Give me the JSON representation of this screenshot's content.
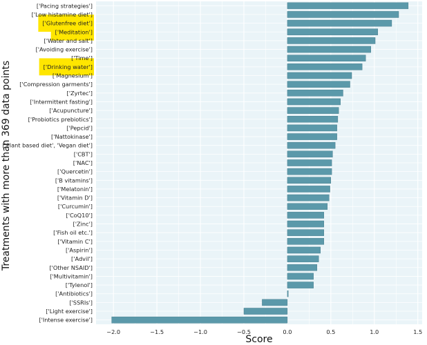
{
  "chart_data": {
    "type": "bar",
    "orientation": "horizontal",
    "title": "",
    "xlabel": "Score",
    "ylabel": "Treatments with more than 369 data points",
    "xlim": [
      -2.2,
      1.55
    ],
    "xticks": [
      "−2.0",
      "−1.5",
      "−1.0",
      "−0.5",
      "0.0",
      "0.5",
      "1.0",
      "1.5"
    ],
    "xtick_values": [
      -2.0,
      -1.5,
      -1.0,
      -0.5,
      0.0,
      0.5,
      1.0,
      1.5
    ],
    "grid": true,
    "colors": {
      "bar": "#5b99aa",
      "bar_edge": "#3f7686",
      "plot_background": "#eaf4f8",
      "grid": "#ffffff",
      "highlight": "#ffe600"
    },
    "categories": [
      "['Pacing strategies']",
      "['Low histamine diet']",
      "['Glutenfree diet']",
      "['Meditation']",
      "['Water and salt']",
      "['Avoiding exercise']",
      "['Time']",
      "['Drinking water']",
      "['Magnesium']",
      "['Compression garments']",
      "['Zyrtec']",
      "['Intermittent fasting']",
      "['Acupuncture']",
      "['Probiotics prebiotics']",
      "['Pepcid']",
      "['Nattokinase']",
      "['Plant based diet', 'Vegan diet']",
      "['CBT']",
      "['NAC']",
      "['Quercetin']",
      "['B vitamins']",
      "['Melatonin']",
      "['Vitamin D']",
      "['Curcumin']",
      "['CoQ10']",
      "['Zinc']",
      "['Fish oil etc.']",
      "['Vitamin C']",
      "['Aspirin']",
      "['Advil']",
      "['Other NSAID']",
      "['Multivitamin']",
      "['Tylenol']",
      "['Antibiotics']",
      "['SSRIs']",
      "['Light exercise']",
      "['Intense exercise']"
    ],
    "values": [
      1.39,
      1.28,
      1.2,
      1.04,
      1.01,
      0.96,
      0.9,
      0.86,
      0.74,
      0.72,
      0.64,
      0.61,
      0.59,
      0.58,
      0.57,
      0.57,
      0.55,
      0.52,
      0.51,
      0.51,
      0.5,
      0.49,
      0.48,
      0.46,
      0.42,
      0.42,
      0.42,
      0.42,
      0.38,
      0.36,
      0.34,
      0.3,
      0.3,
      0.01,
      -0.29,
      -0.5,
      -2.02
    ],
    "highlighted": [
      "['Glutenfree diet']",
      "['Meditation']",
      "['Drinking water']"
    ]
  }
}
